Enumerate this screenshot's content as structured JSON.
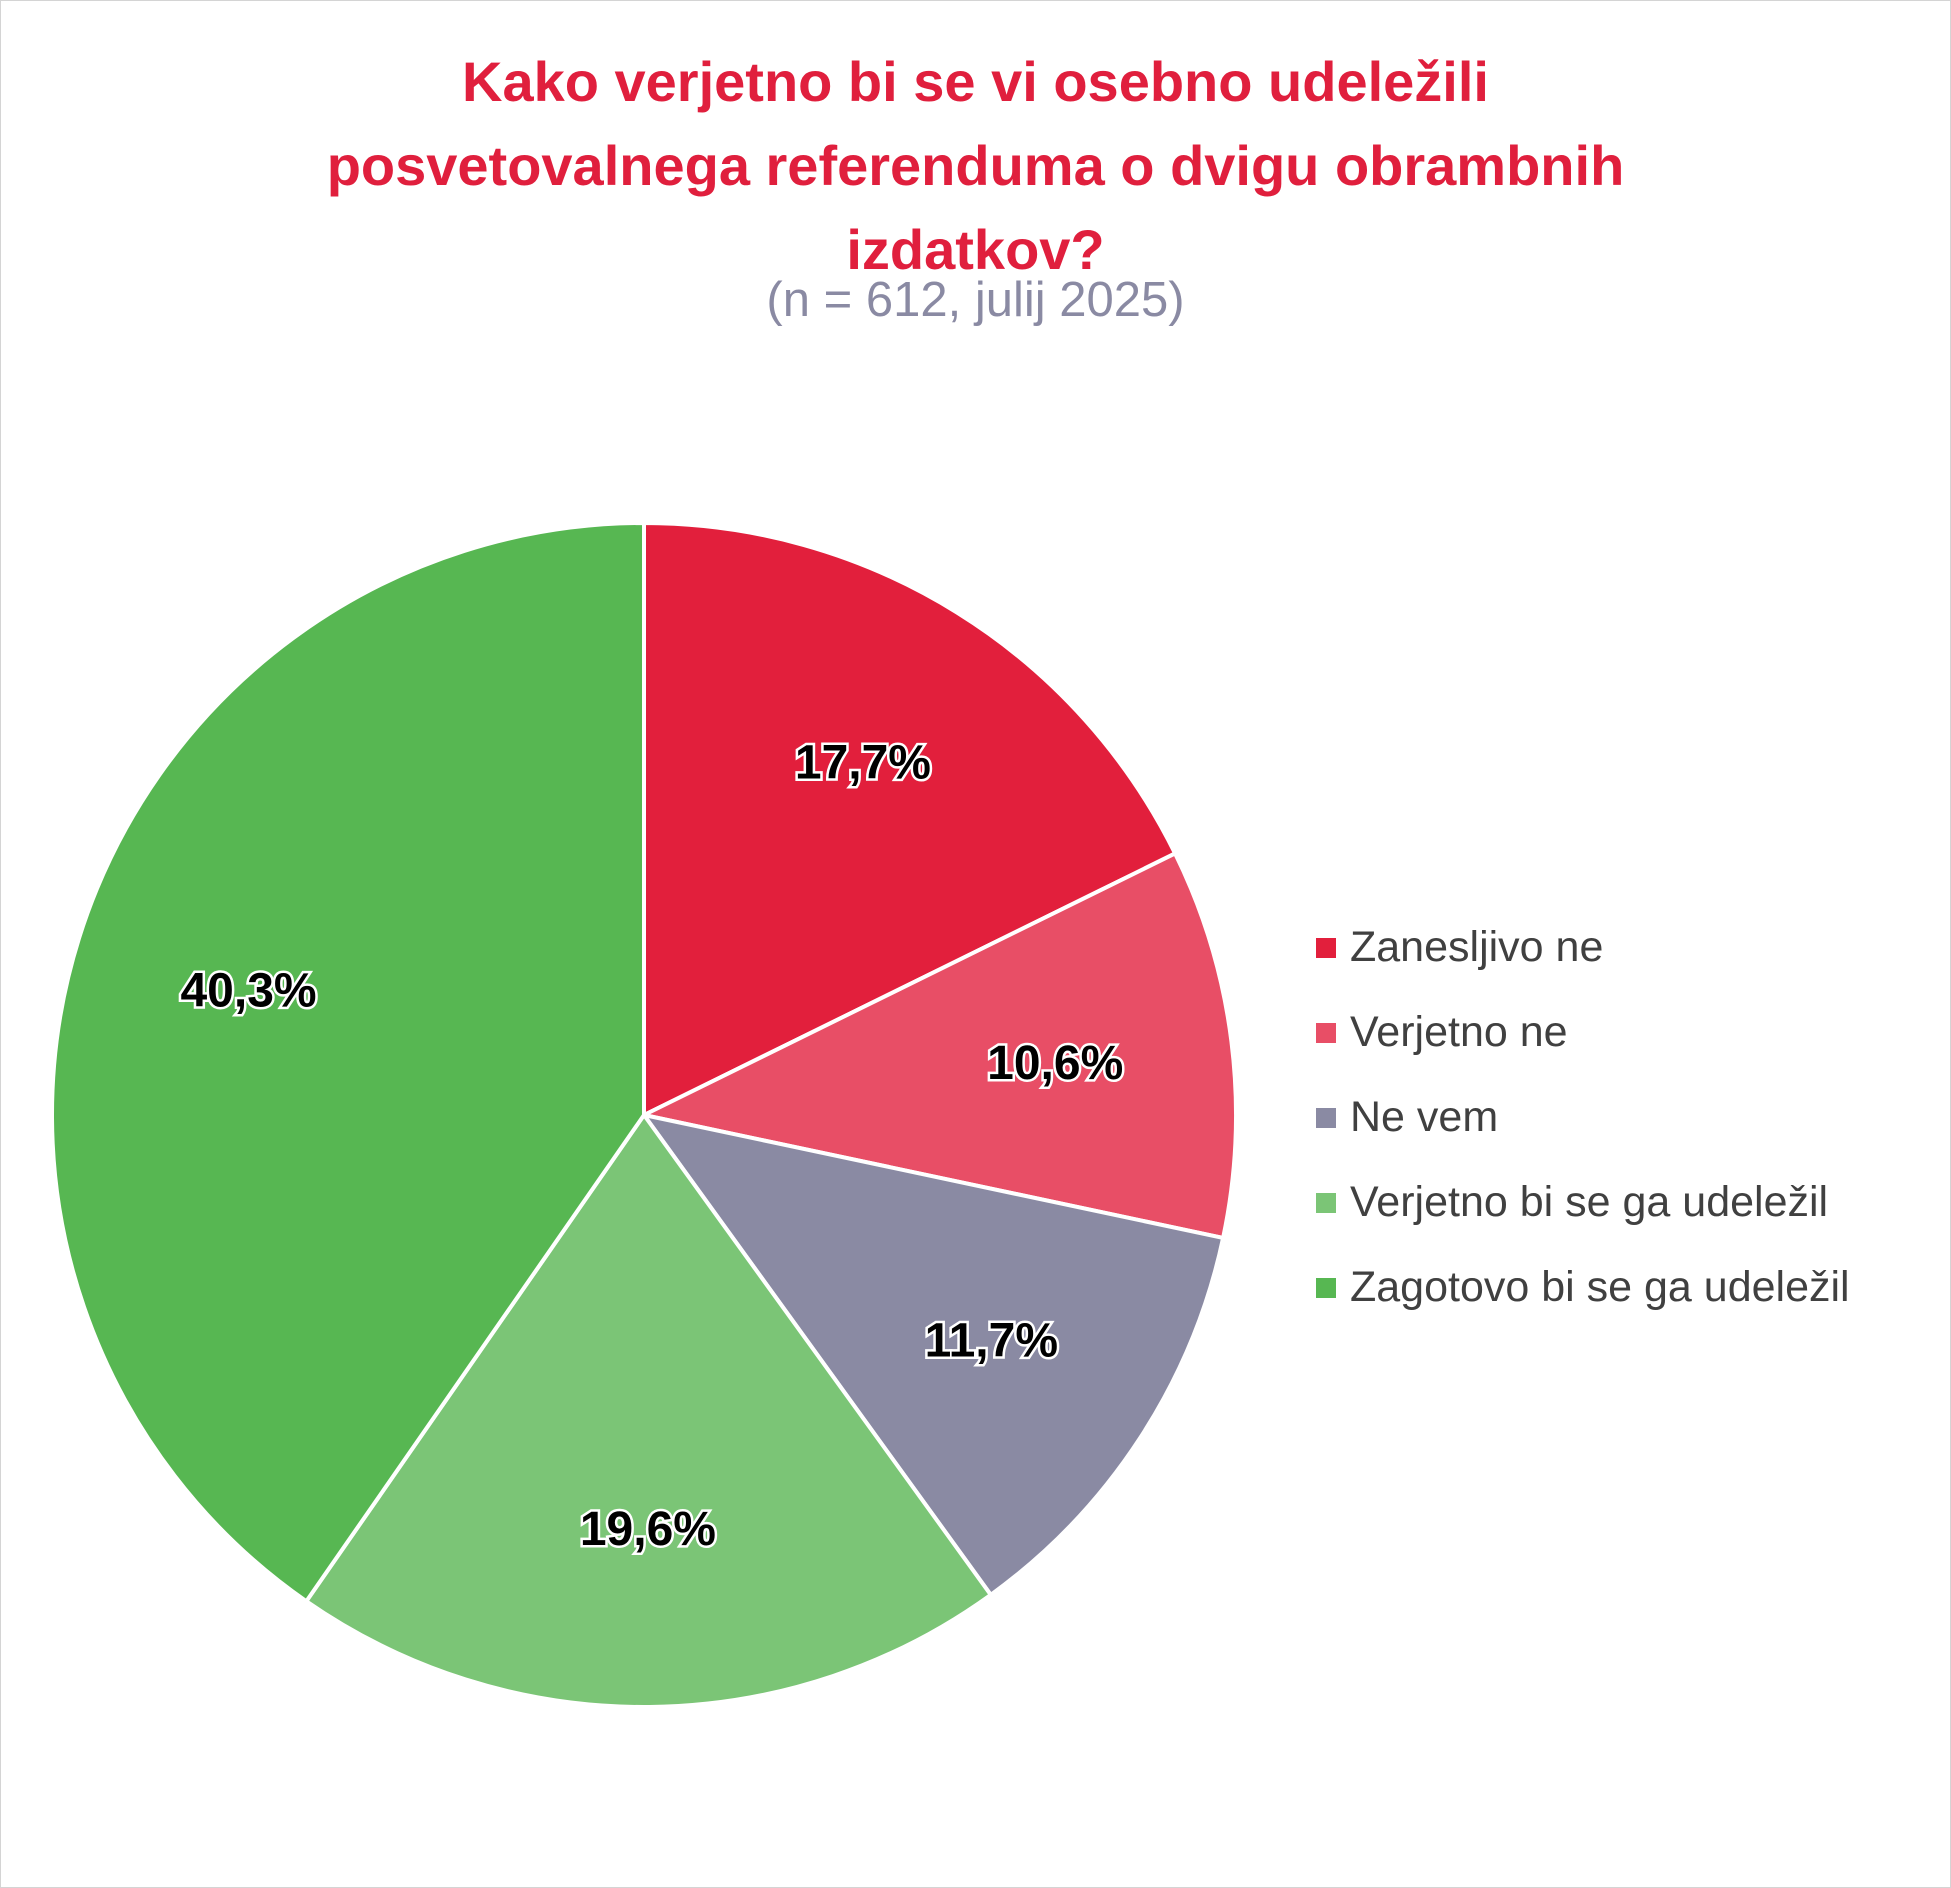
{
  "chart_data": {
    "type": "pie",
    "title_lines": [
      "Kako verjetno bi se vi osebno udeležili",
      "posvetovalnega referenduma o dvigu obrambnih",
      "izdatkov?"
    ],
    "subtitle": "(n = 612, julij 2025)",
    "legend_position": "right",
    "slices": [
      {
        "label": "Zanesljivo ne",
        "value": 17.7,
        "display": "17,7%",
        "color": "#e21f3c"
      },
      {
        "label": "Verjetno ne",
        "value": 10.6,
        "display": "10,6%",
        "color": "#e84e66"
      },
      {
        "label": "Ne vem",
        "value": 11.7,
        "display": "11,7%",
        "color": "#8a8aa3"
      },
      {
        "label": "Verjetno bi se ga udeležil",
        "value": 19.6,
        "display": "19,6%",
        "color": "#7bc576"
      },
      {
        "label": "Zagotovo bi se ga udeležil",
        "value": 40.3,
        "display": "40,3%",
        "color": "#57b752"
      }
    ]
  }
}
